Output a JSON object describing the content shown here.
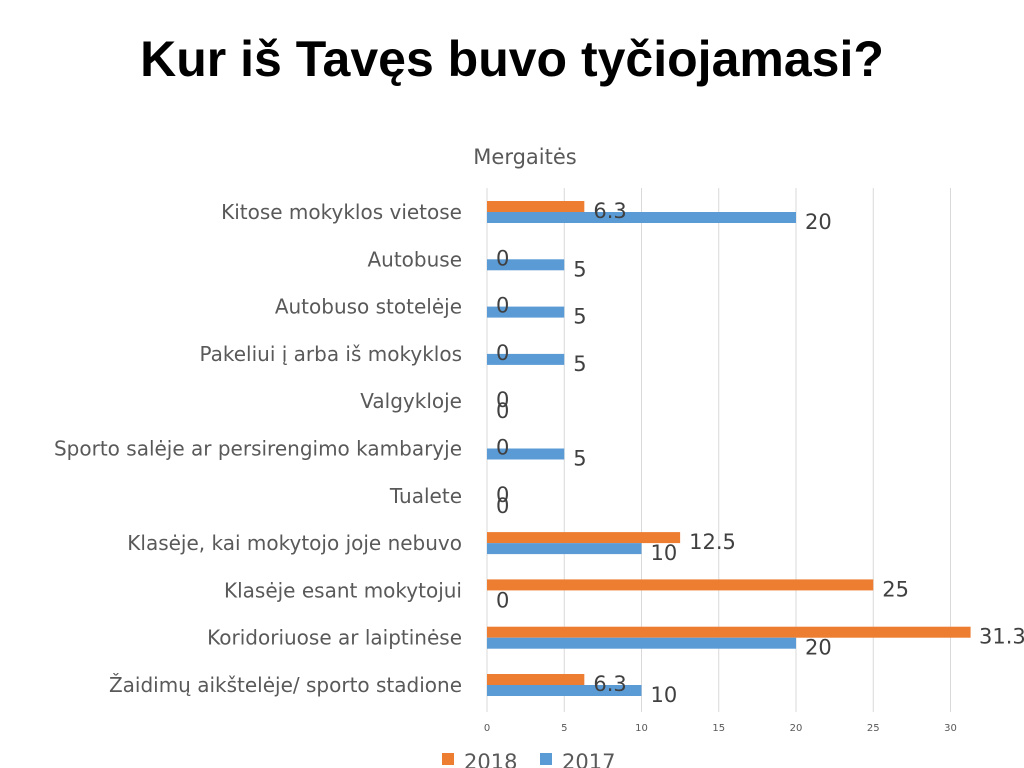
{
  "slide": {
    "title": "Kur iš Tavęs buvo tyčiojamasi?"
  },
  "chart_data": {
    "type": "bar",
    "orientation": "horizontal",
    "title": "Mergaitės",
    "xlabel": "",
    "ylabel": "",
    "xlim": [
      0,
      30
    ],
    "x_ticks": [
      0,
      5,
      10,
      15,
      20,
      25,
      30
    ],
    "grid": true,
    "legend_position": "bottom",
    "categories": [
      "Kitose mokyklos vietose",
      "Autobuse",
      "Autobuso stotelėje",
      "Pakeliui į arba iš mokyklos",
      "Valgykloje",
      "Sporto salėje ar persirengimo kambaryje",
      "Tualete",
      "Klasėje, kai mokytojo joje nebuvo",
      "Klasėje esant mokytojui",
      "Koridoriuose ar laiptinėse",
      "Žaidimų aikštelėje/ sporto stadione"
    ],
    "series": [
      {
        "name": "2018",
        "color": "#ED7D31",
        "values": [
          6.3,
          0,
          0,
          0,
          0,
          0,
          0,
          12.5,
          25,
          31.3,
          6.3
        ]
      },
      {
        "name": "2017",
        "color": "#5B9BD5",
        "values": [
          20,
          5,
          5,
          5,
          0,
          5,
          0,
          10,
          0,
          20,
          10
        ]
      }
    ]
  }
}
